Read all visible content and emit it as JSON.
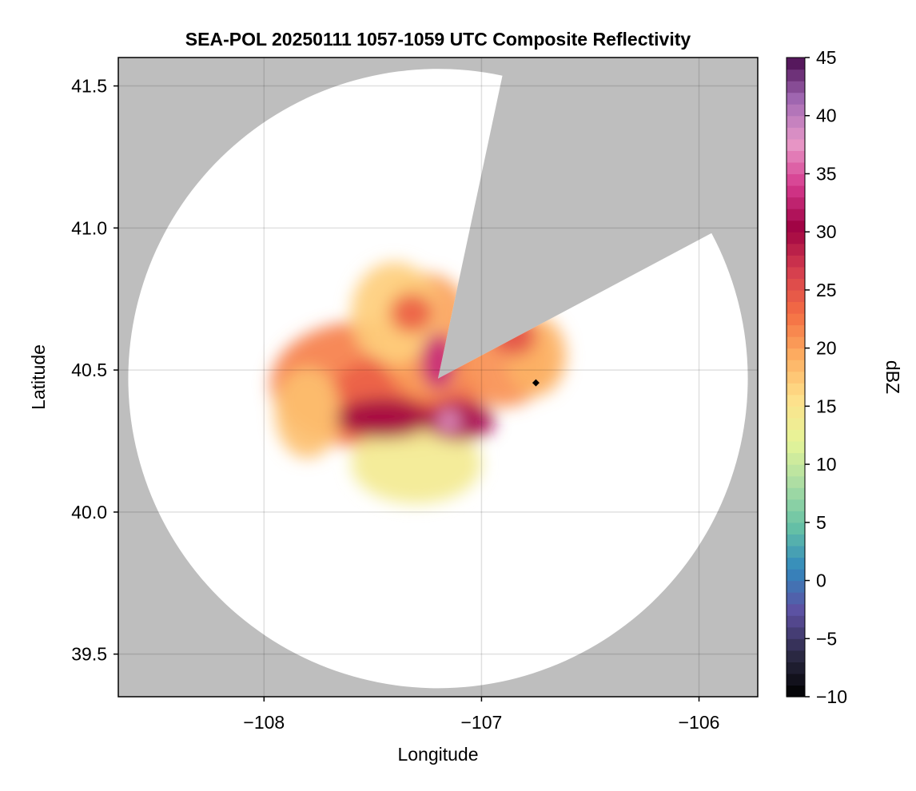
{
  "chart_data": {
    "type": "heatmap",
    "title": "SEA-POL 20250111 1057-1059 UTC Composite Reflectivity",
    "xlabel": "Longitude",
    "ylabel": "Latitude",
    "xlim": [
      -108.67,
      -105.73
    ],
    "ylim": [
      39.35,
      41.6
    ],
    "xticks": [
      -108,
      -107,
      -106
    ],
    "xtick_labels": [
      "−108",
      "−107",
      "−106"
    ],
    "yticks": [
      39.5,
      40.0,
      40.5,
      41.0,
      41.5
    ],
    "ytick_labels": [
      "39.5",
      "40.0",
      "40.5",
      "41.0",
      "41.5"
    ],
    "grid": true,
    "background_color": "#bebebe",
    "radar": {
      "center_lon": -107.2,
      "center_lat": 40.47,
      "coverage_radius_deg_lat": 1.09,
      "blocked_sectors_bearing_deg": [
        [
          12,
          62
        ]
      ]
    },
    "marker": {
      "lon": -106.75,
      "lat": 40.455,
      "shape": "diamond",
      "color": "#000000"
    },
    "colorbar": {
      "label": "dBZ",
      "min": -10,
      "max": 45,
      "ticks": [
        -10,
        -5,
        0,
        5,
        10,
        15,
        20,
        25,
        30,
        35,
        40,
        45
      ],
      "tick_labels": [
        "−10",
        "−5",
        "0",
        "5",
        "10",
        "15",
        "20",
        "25",
        "30",
        "35",
        "40",
        "45"
      ],
      "colormap": [
        "#000000",
        "#2c2a45",
        "#5e4fa2",
        "#3288bd",
        "#66c2a5",
        "#abdda4",
        "#e6f598",
        "#fee08b",
        "#fdae61",
        "#f46d43",
        "#d53e4f",
        "#9e0142",
        "#d63a8e",
        "#e899c8",
        "#a36ab5",
        "#4a0b4f"
      ],
      "levels": 55
    },
    "echo_cells": [
      {
        "lon": -107.55,
        "lat": 40.45,
        "rx": 0.42,
        "ry": 0.22,
        "dbz": 22
      },
      {
        "lon": -107.35,
        "lat": 40.4,
        "rx": 0.35,
        "ry": 0.16,
        "dbz": 24
      },
      {
        "lon": -107.25,
        "lat": 40.62,
        "rx": 0.22,
        "ry": 0.22,
        "dbz": 20
      },
      {
        "lon": -107.4,
        "lat": 40.7,
        "rx": 0.2,
        "ry": 0.18,
        "dbz": 17
      },
      {
        "lon": -106.9,
        "lat": 40.53,
        "rx": 0.22,
        "ry": 0.16,
        "dbz": 21
      },
      {
        "lon": -106.75,
        "lat": 40.55,
        "rx": 0.14,
        "ry": 0.14,
        "dbz": 19
      },
      {
        "lon": -107.3,
        "lat": 40.17,
        "rx": 0.3,
        "ry": 0.14,
        "dbz": 14
      },
      {
        "lon": -107.8,
        "lat": 40.35,
        "rx": 0.15,
        "ry": 0.16,
        "dbz": 18
      },
      {
        "lon": -107.45,
        "lat": 40.33,
        "rx": 0.22,
        "ry": 0.07,
        "dbz": 30
      },
      {
        "lon": -107.1,
        "lat": 40.32,
        "rx": 0.16,
        "ry": 0.07,
        "dbz": 31
      },
      {
        "lon": -107.2,
        "lat": 40.53,
        "rx": 0.08,
        "ry": 0.1,
        "dbz": 33
      },
      {
        "lon": -107.15,
        "lat": 40.32,
        "rx": 0.05,
        "ry": 0.04,
        "dbz": 38
      },
      {
        "lon": -107.32,
        "lat": 40.7,
        "rx": 0.1,
        "ry": 0.07,
        "dbz": 24
      },
      {
        "lon": -106.85,
        "lat": 40.62,
        "rx": 0.1,
        "ry": 0.07,
        "dbz": 25
      }
    ]
  }
}
